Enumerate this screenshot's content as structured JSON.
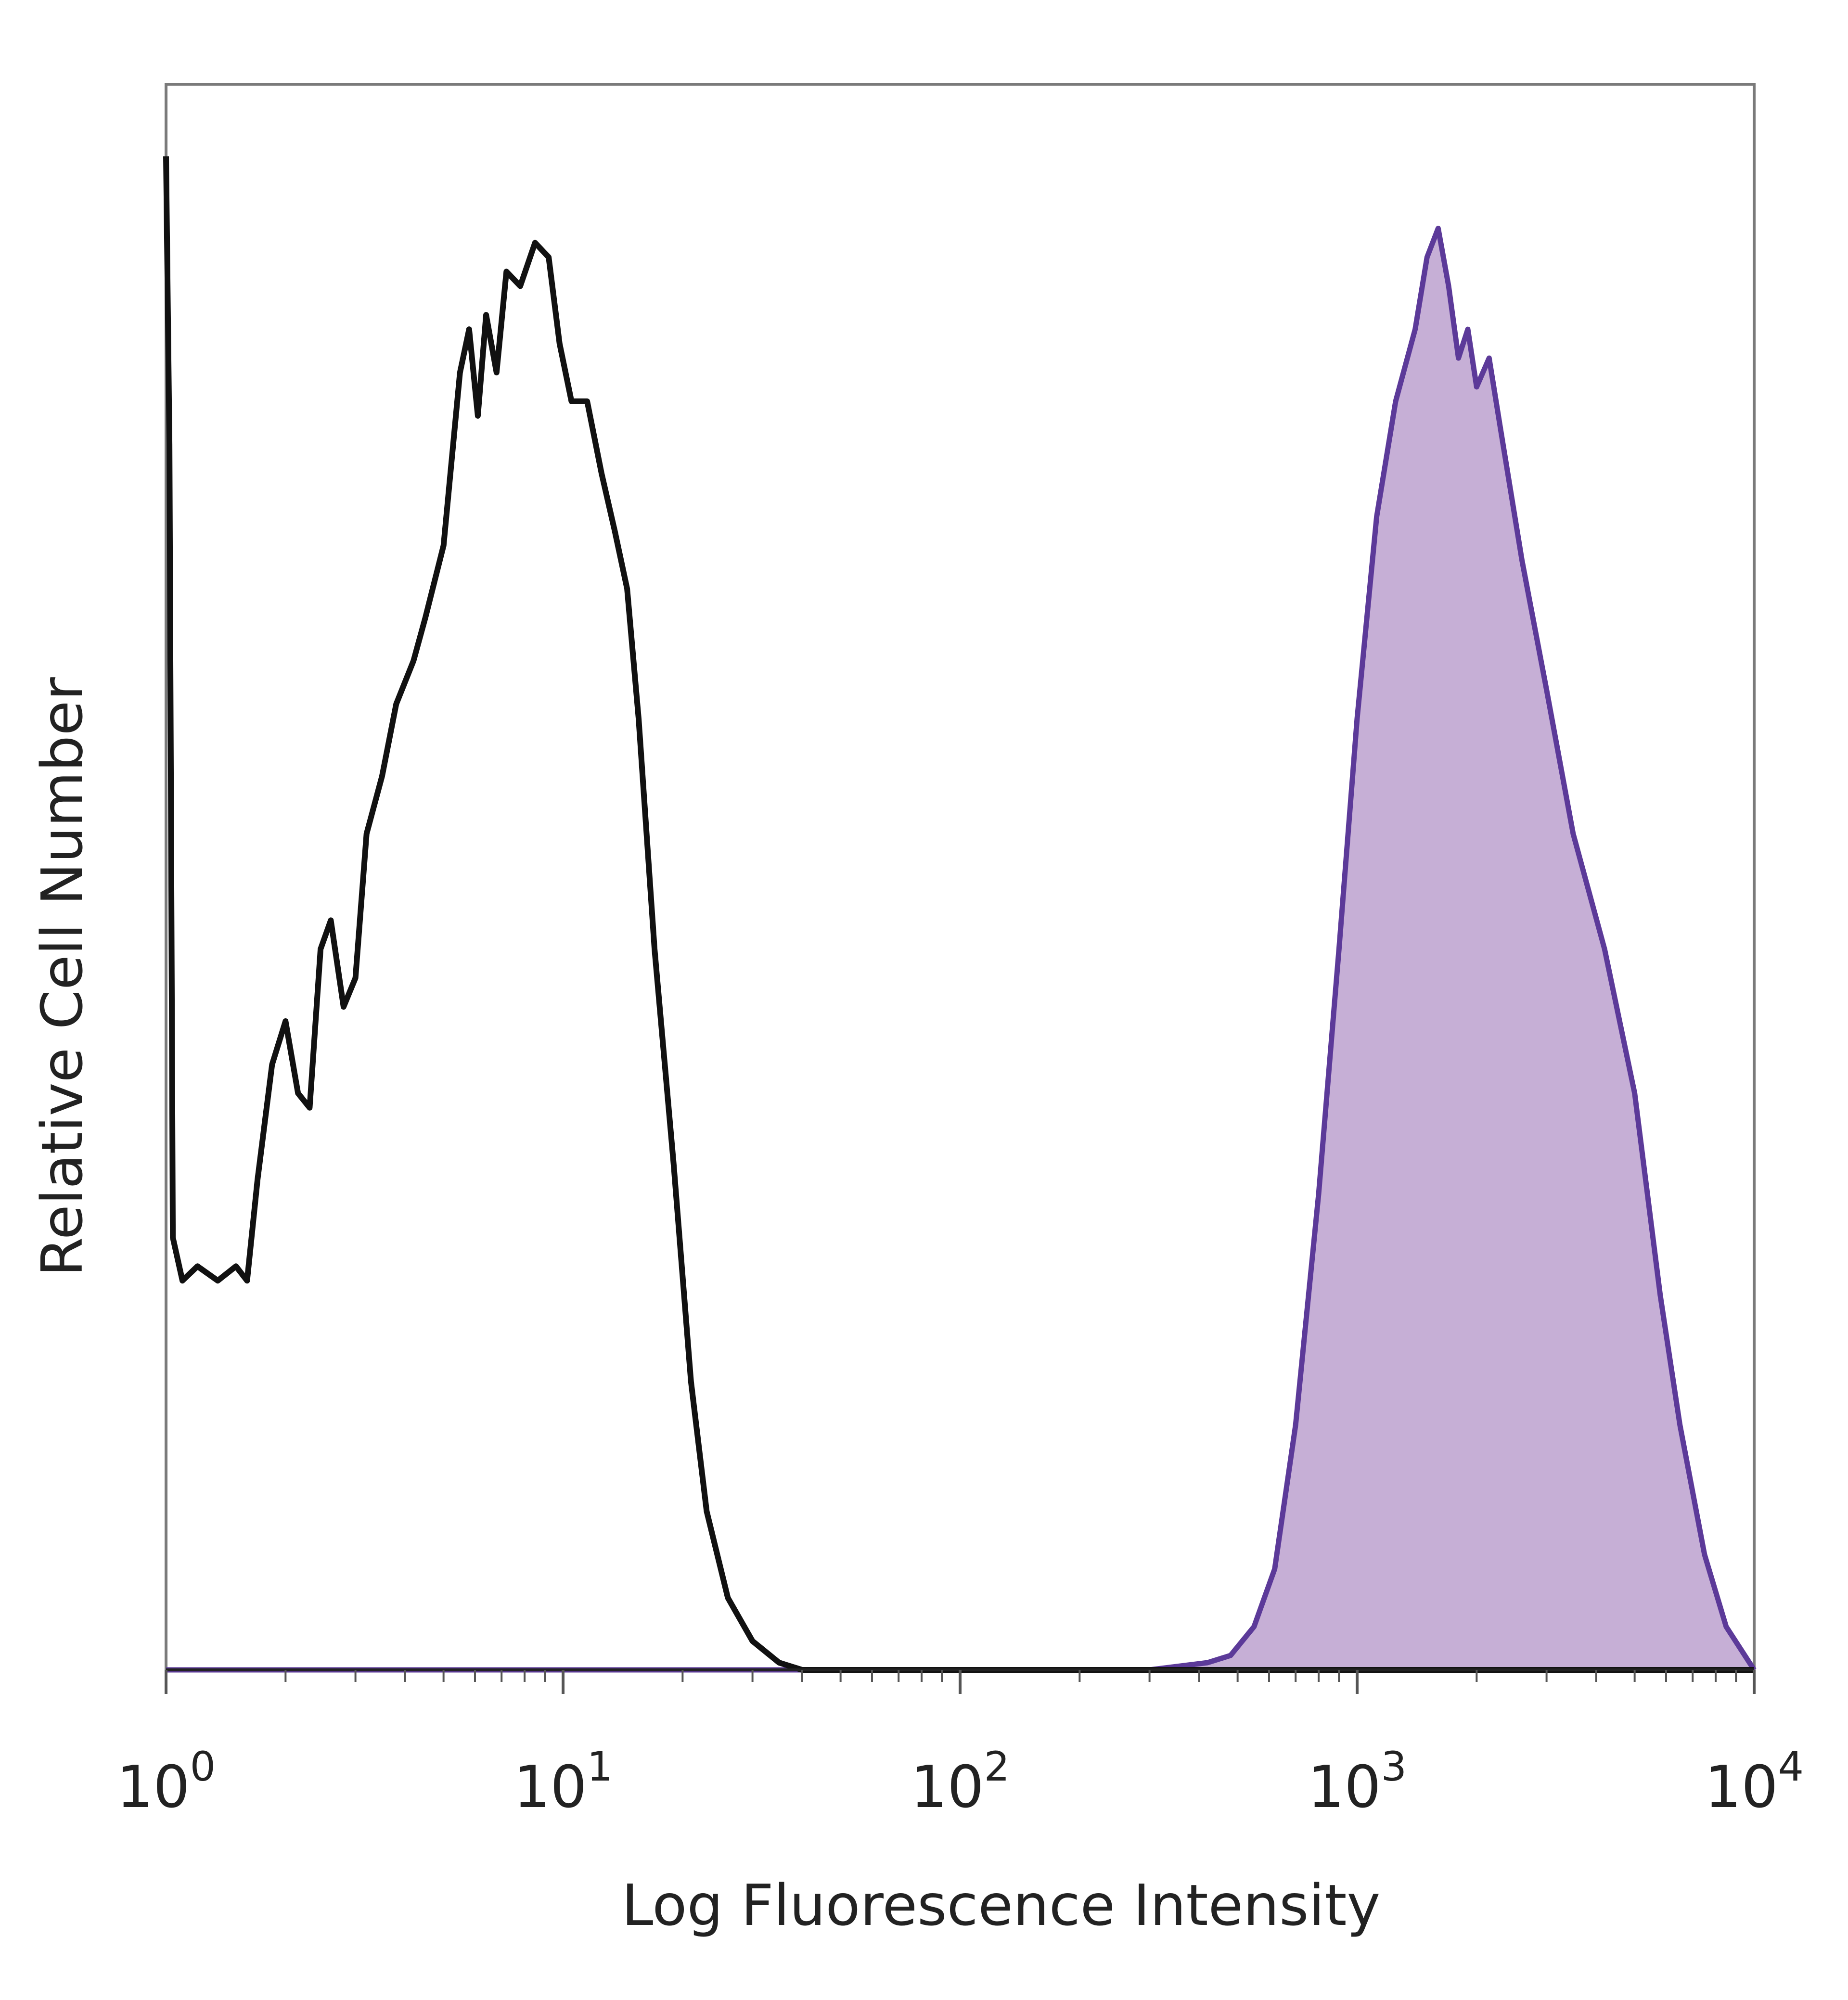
{
  "chart_data": {
    "type": "area",
    "title": "",
    "xlabel": "Log Fluorescence Intensity",
    "ylabel": "Relative Cell Number",
    "xscale": "log",
    "xlim": [
      1,
      10000
    ],
    "ylim": [
      0,
      1.1
    ],
    "grid": false,
    "legend": "none",
    "x_ticks": [
      {
        "value": 1,
        "base": "10",
        "exp": "0"
      },
      {
        "value": 10,
        "base": "10",
        "exp": "1"
      },
      {
        "value": 100,
        "base": "10",
        "exp": "2"
      },
      {
        "value": 1000,
        "base": "10",
        "exp": "3"
      },
      {
        "value": 10000,
        "base": "10",
        "exp": "4"
      }
    ],
    "series": [
      {
        "style": "outline",
        "color": "#111111",
        "points": [
          [
            1.0,
            1.05
          ],
          [
            1.02,
            0.85
          ],
          [
            1.04,
            0.3
          ],
          [
            1.1,
            0.27
          ],
          [
            1.2,
            0.28
          ],
          [
            1.35,
            0.27
          ],
          [
            1.5,
            0.28
          ],
          [
            1.6,
            0.27
          ],
          [
            1.7,
            0.34
          ],
          [
            1.85,
            0.42
          ],
          [
            2.0,
            0.45
          ],
          [
            2.15,
            0.4
          ],
          [
            2.3,
            0.39
          ],
          [
            2.45,
            0.5
          ],
          [
            2.6,
            0.52
          ],
          [
            2.8,
            0.46
          ],
          [
            3.0,
            0.48
          ],
          [
            3.2,
            0.58
          ],
          [
            3.5,
            0.62
          ],
          [
            3.8,
            0.67
          ],
          [
            4.2,
            0.7
          ],
          [
            4.5,
            0.73
          ],
          [
            5.0,
            0.78
          ],
          [
            5.5,
            0.9
          ],
          [
            5.8,
            0.93
          ],
          [
            6.1,
            0.87
          ],
          [
            6.4,
            0.94
          ],
          [
            6.8,
            0.9
          ],
          [
            7.2,
            0.97
          ],
          [
            7.8,
            0.96
          ],
          [
            8.5,
            0.99
          ],
          [
            9.2,
            0.98
          ],
          [
            9.8,
            0.92
          ],
          [
            10.5,
            0.88
          ],
          [
            11.5,
            0.88
          ],
          [
            12.5,
            0.83
          ],
          [
            13.5,
            0.79
          ],
          [
            14.5,
            0.75
          ],
          [
            15.5,
            0.66
          ],
          [
            17.0,
            0.5
          ],
          [
            19.0,
            0.35
          ],
          [
            21.0,
            0.2
          ],
          [
            23.0,
            0.11
          ],
          [
            26.0,
            0.05
          ],
          [
            30.0,
            0.02
          ],
          [
            35.0,
            0.005
          ],
          [
            40.0,
            0.0
          ],
          [
            10000,
            0.0
          ]
        ]
      },
      {
        "style": "filled",
        "color": "#5c3a99",
        "fill": "#c6afd6",
        "points": [
          [
            1.0,
            0.0
          ],
          [
            300,
            0.0
          ],
          [
            420,
            0.005
          ],
          [
            480,
            0.01
          ],
          [
            550,
            0.03
          ],
          [
            620,
            0.07
          ],
          [
            700,
            0.17
          ],
          [
            800,
            0.33
          ],
          [
            900,
            0.5
          ],
          [
            1000,
            0.66
          ],
          [
            1120,
            0.8
          ],
          [
            1250,
            0.88
          ],
          [
            1400,
            0.93
          ],
          [
            1500,
            0.98
          ],
          [
            1600,
            1.0
          ],
          [
            1700,
            0.96
          ],
          [
            1800,
            0.91
          ],
          [
            1900,
            0.93
          ],
          [
            2000,
            0.89
          ],
          [
            2150,
            0.91
          ],
          [
            2300,
            0.86
          ],
          [
            2600,
            0.77
          ],
          [
            3000,
            0.68
          ],
          [
            3500,
            0.58
          ],
          [
            4200,
            0.5
          ],
          [
            5000,
            0.4
          ],
          [
            5800,
            0.26
          ],
          [
            6500,
            0.17
          ],
          [
            7500,
            0.08
          ],
          [
            8500,
            0.03
          ],
          [
            10000,
            0.0
          ]
        ]
      }
    ]
  }
}
